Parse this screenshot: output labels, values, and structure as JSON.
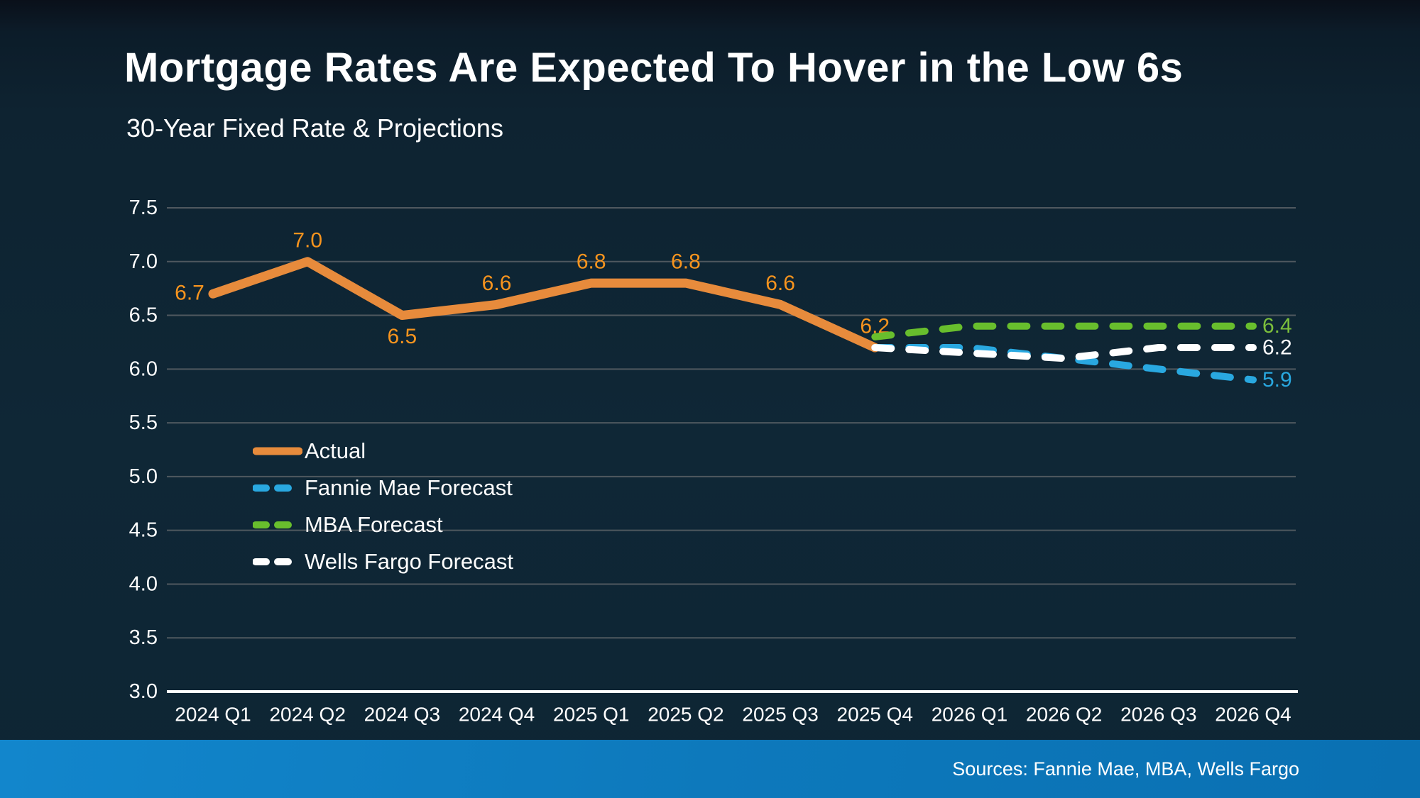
{
  "header": {
    "title": "Mortgage Rates Are Expected To Hover in the Low 6s",
    "subtitle": "30-Year Fixed Rate & Projections"
  },
  "footer": {
    "sources": "Sources: Fannie Mae, MBA, Wells Fargo"
  },
  "colors": {
    "background": "#0e2534",
    "gridline": "#4f585f",
    "axis_line": "#ffffff",
    "tick_text": "#ffffff",
    "actual": "#e78b3c",
    "actual_label": "#f7941e",
    "fannie_mae": "#29a8e0",
    "mba": "#68be2d",
    "mba_label": "#7cbf3c",
    "wells_fargo": "#ffffff",
    "footer_bar_start": "#1286cc",
    "footer_bar_end": "#0a70b2"
  },
  "legend": {
    "items": [
      {
        "label": "Actual",
        "color": "#e78b3c",
        "style": "solid"
      },
      {
        "label": "Fannie Mae Forecast",
        "color": "#29a8e0",
        "style": "dashed"
      },
      {
        "label": "MBA Forecast",
        "color": "#68be2d",
        "style": "dashed"
      },
      {
        "label": "Wells Fargo Forecast",
        "color": "#ffffff",
        "style": "dashed"
      }
    ]
  },
  "chart_data": {
    "type": "line",
    "title": "30-Year Fixed Rate & Projections",
    "xlabel": "",
    "ylabel": "",
    "ylim": [
      3.0,
      7.5
    ],
    "yticks": [
      "7.5",
      "7.0",
      "6.5",
      "6.0",
      "5.5",
      "5.0",
      "4.5",
      "4.0",
      "3.5",
      "3.0"
    ],
    "grid": true,
    "legend_position": "inside-left",
    "categories": [
      "2024 Q1",
      "2024 Q2",
      "2024 Q3",
      "2024 Q4",
      "2025 Q1",
      "2025 Q2",
      "2025 Q3",
      "2025 Q4",
      "2026 Q1",
      "2026 Q2",
      "2026 Q3",
      "2026 Q4"
    ],
    "series": [
      {
        "name": "Actual",
        "style": "solid",
        "color": "#e78b3c",
        "label_color": "#f7941e",
        "start_index": 0,
        "values": [
          6.7,
          7.0,
          6.5,
          6.6,
          6.8,
          6.8,
          6.6,
          6.2
        ],
        "point_labels": [
          {
            "text": "6.7",
            "position": "left"
          },
          {
            "text": "7.0",
            "position": "above"
          },
          {
            "text": "6.5",
            "position": "below"
          },
          {
            "text": "6.6",
            "position": "above"
          },
          {
            "text": "6.8",
            "position": "above"
          },
          {
            "text": "6.8",
            "position": "above"
          },
          {
            "text": "6.6",
            "position": "above"
          },
          {
            "text": "6.2",
            "position": "above"
          }
        ]
      },
      {
        "name": "MBA Forecast",
        "style": "dashed",
        "color": "#68be2d",
        "label_color": "#7cbf3c",
        "start_index": 7,
        "values": [
          6.3,
          6.4,
          6.4,
          6.4,
          6.4
        ],
        "end_label": "6.4"
      },
      {
        "name": "Fannie Mae Forecast",
        "style": "dashed",
        "color": "#29a8e0",
        "label_color": "#29a8e0",
        "start_index": 7,
        "values": [
          6.2,
          6.2,
          6.1,
          6.0,
          5.9
        ],
        "end_label": "5.9"
      },
      {
        "name": "Wells Fargo Forecast",
        "style": "dashed",
        "color": "#ffffff",
        "label_color": "#ffffff",
        "start_index": 7,
        "values": [
          6.2,
          6.15,
          6.1,
          6.2,
          6.2
        ],
        "end_label": "6.2"
      }
    ]
  }
}
